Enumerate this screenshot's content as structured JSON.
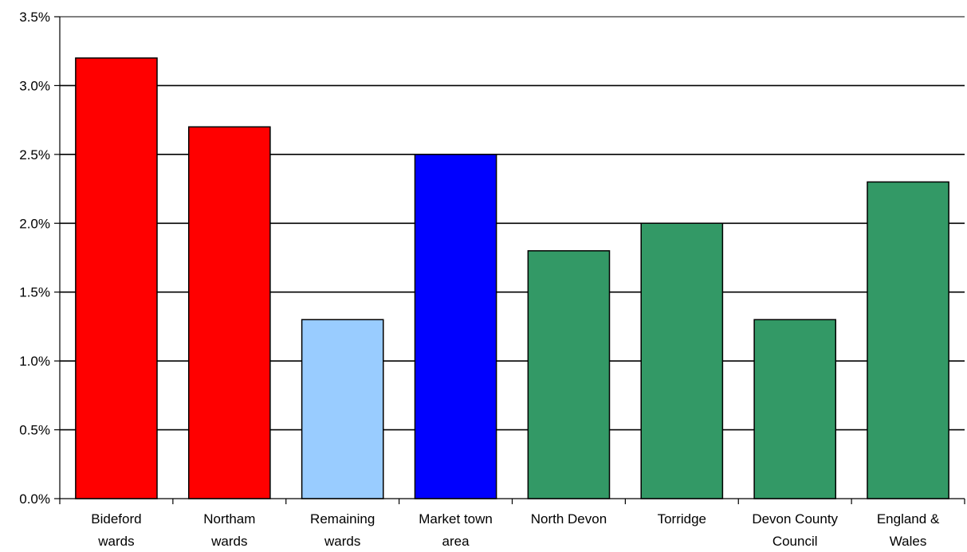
{
  "chart_data": {
    "type": "bar",
    "title": "",
    "xlabel": "",
    "ylabel": "",
    "categories": [
      [
        "Bideford",
        "wards"
      ],
      [
        "Northam",
        "wards"
      ],
      [
        "Remaining",
        "wards"
      ],
      [
        "Market town",
        "area"
      ],
      [
        "North Devon"
      ],
      [
        "Torridge"
      ],
      [
        "Devon County",
        "Council"
      ],
      [
        "England &",
        "Wales"
      ]
    ],
    "values": [
      3.2,
      2.7,
      1.3,
      2.5,
      1.8,
      2.0,
      1.3,
      2.3
    ],
    "bar_colors": [
      "#ff0000",
      "#ff0000",
      "#99ccff",
      "#0000ff",
      "#339966",
      "#339966",
      "#339966",
      "#339966"
    ],
    "ylim": [
      0,
      3.5
    ],
    "yticks": [
      {
        "value": 0,
        "label": "0.0%"
      },
      {
        "value": 0.5,
        "label": "0.5%"
      },
      {
        "value": 1.0,
        "label": "1.0%"
      },
      {
        "value": 1.5,
        "label": "1.5%"
      },
      {
        "value": 2.0,
        "label": "2.0%"
      },
      {
        "value": 2.5,
        "label": "2.5%"
      },
      {
        "value": 3.0,
        "label": "3.0%"
      },
      {
        "value": 3.5,
        "label": "3.5%"
      }
    ],
    "grid": true,
    "legend": "none"
  }
}
